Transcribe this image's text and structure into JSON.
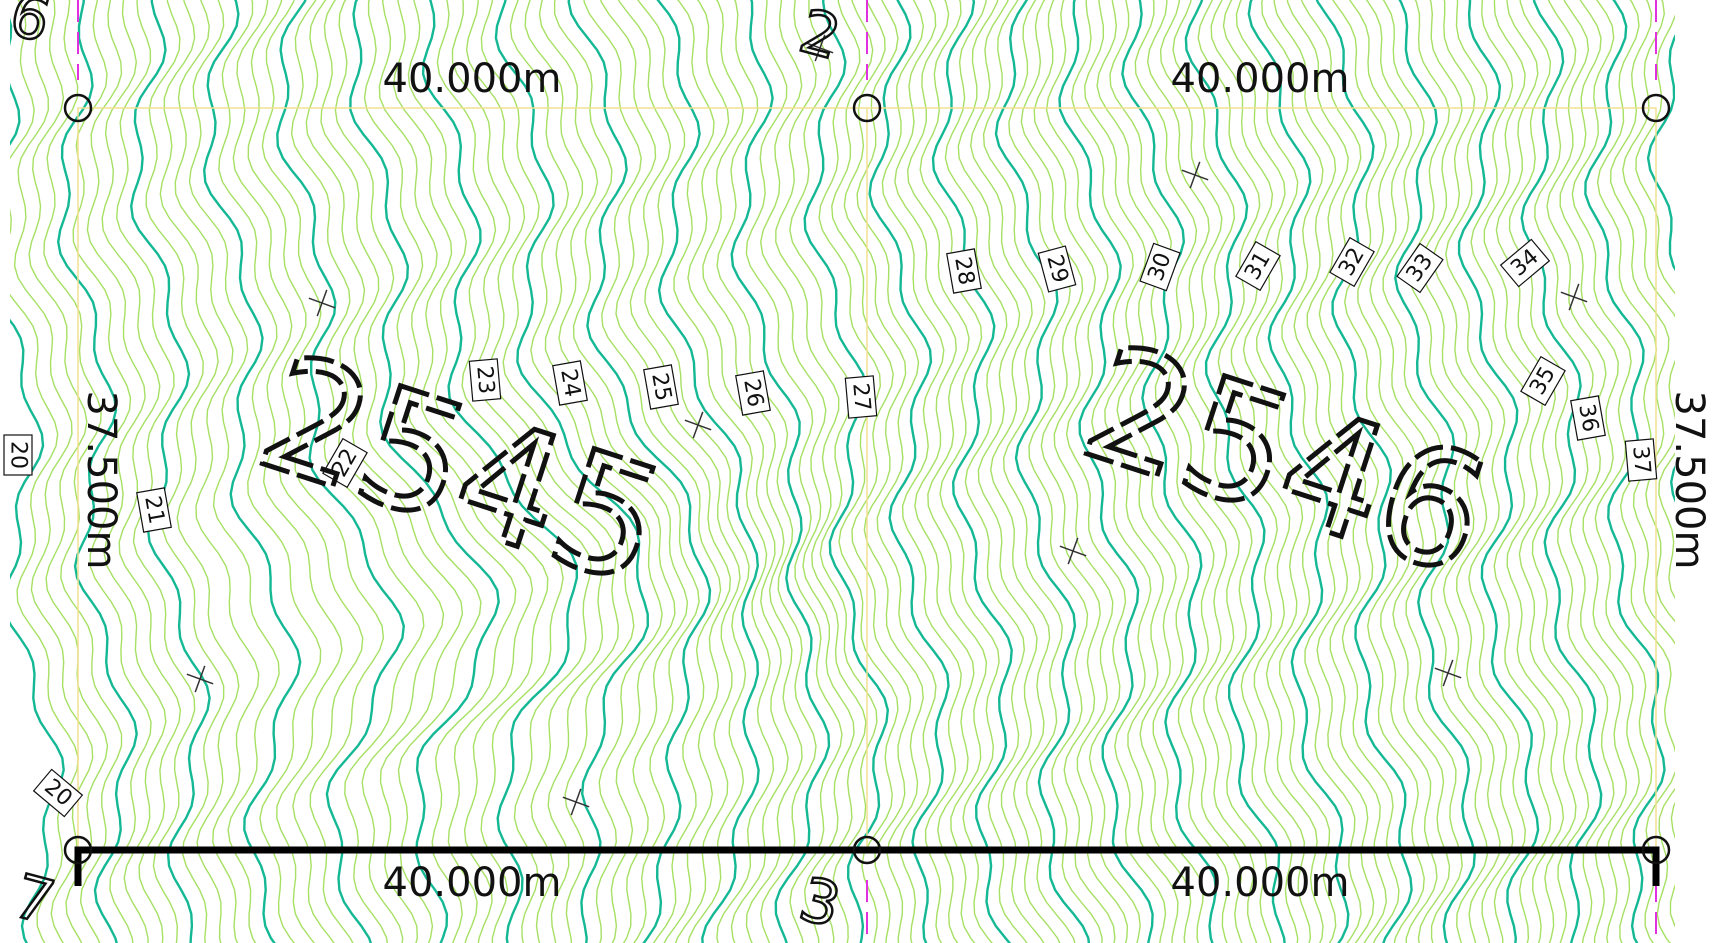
{
  "colors": {
    "minor_contour": "#a6e064",
    "major_contour": "#14b894",
    "parcel_line": "#f0e090",
    "grid_line": "#e030e0",
    "survey_line": "#000000"
  },
  "dimensions": {
    "top_left": "40.000m",
    "top_right": "40.000m",
    "bottom_left": "40.000m",
    "bottom_right": "40.000m",
    "left_side": "37.500m",
    "right_side": "37.500m"
  },
  "lots": {
    "left": "2545",
    "right": "2546"
  },
  "corners": {
    "top_left": "6",
    "top_middle": "2",
    "bottom_left": "7",
    "bottom_middle": "3"
  },
  "contour_labels": [
    "20",
    "20",
    "21",
    "22",
    "23",
    "24",
    "25",
    "26",
    "27",
    "28",
    "29",
    "30",
    "31",
    "32",
    "33",
    "34",
    "35",
    "36",
    "37"
  ]
}
